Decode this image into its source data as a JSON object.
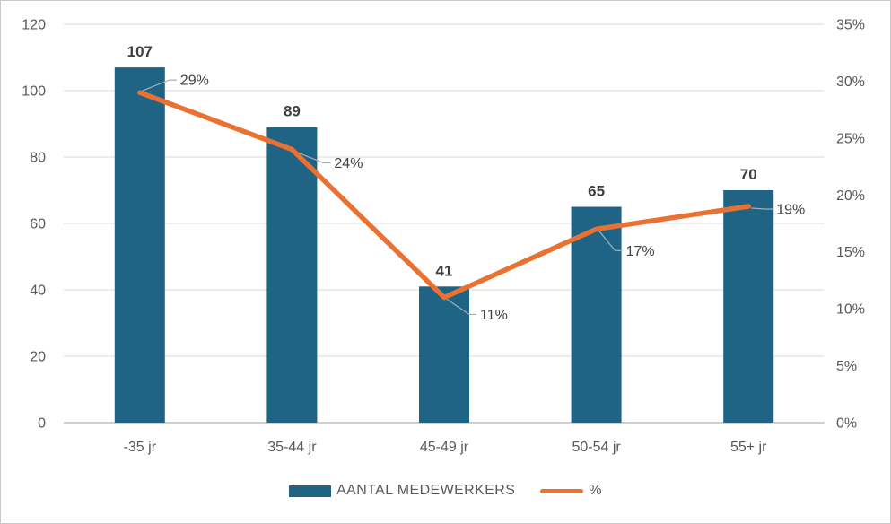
{
  "chart_data": {
    "type": "combo-bar-line",
    "categories": [
      "-35 jr",
      "35-44 jr",
      "45-49 jr",
      "50-54 jr",
      "55+ jr"
    ],
    "series": [
      {
        "name": "AANTAL MEDEWERKERS",
        "type": "bar",
        "axis": "left",
        "values": [
          107,
          89,
          41,
          65,
          70
        ],
        "data_labels": [
          "107",
          "89",
          "41",
          "65",
          "70"
        ],
        "color": "#1F6485"
      },
      {
        "name": "%",
        "type": "line",
        "axis": "right",
        "values": [
          29,
          24,
          11,
          17,
          19
        ],
        "data_labels": [
          "29%",
          "24%",
          "11%",
          "17%",
          "19%"
        ],
        "color": "#E97132"
      }
    ],
    "left_axis": {
      "min": 0,
      "max": 120,
      "step": 20,
      "tick_labels": [
        "120",
        "100",
        "80",
        "60",
        "40",
        "20",
        "0"
      ]
    },
    "right_axis": {
      "min": 0,
      "max": 35,
      "step": 5,
      "tick_labels": [
        "35%",
        "30%",
        "25%",
        "20%",
        "15%",
        "10%",
        "5%",
        "0%"
      ]
    },
    "grid": true,
    "legend_position": "bottom"
  },
  "colors": {
    "bar": "#1F6485",
    "line": "#E97132",
    "gridline": "#D9D9D9",
    "axis_line": "#BFBFBF",
    "tick_text": "#595959",
    "data_label_text": "#3F3F3F",
    "leader_line": "#A6AFB8",
    "frame_border": "#C8C8C8",
    "background": "#FFFFFF"
  }
}
